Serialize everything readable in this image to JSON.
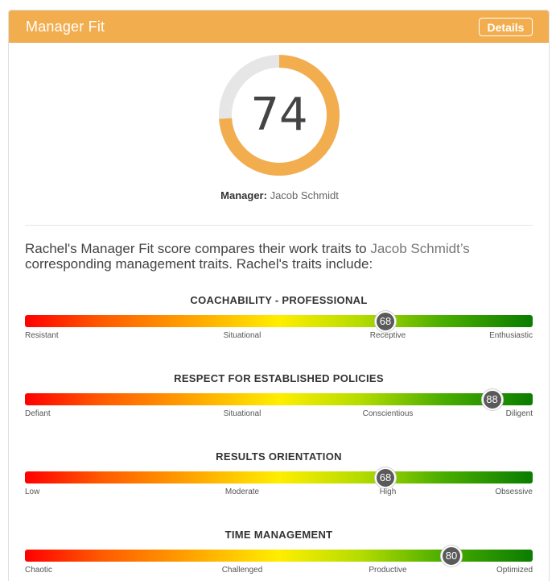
{
  "header": {
    "title": "Manager Fit",
    "details_label": "Details",
    "color": "#f2ad4e"
  },
  "score": {
    "value": "74",
    "percent": 74,
    "ring_color": "#f2ad4e",
    "track_color": "#e6e6e6"
  },
  "manager": {
    "label": "Manager:",
    "name": "Jacob Schmidt"
  },
  "intro": {
    "before": "Rachel's Manager Fit score compares their work traits to ",
    "manager_name": "Jacob Schmidt’s",
    "after": " corresponding management traits. Rachel's traits include:"
  },
  "traits": [
    {
      "title": "COACHABILITY - PROFESSIONAL",
      "value": "68",
      "percent": 71,
      "labels": [
        "Resistant",
        "Situational",
        "Receptive",
        "Enthusiastic"
      ]
    },
    {
      "title": "RESPECT FOR ESTABLISHED POLICIES",
      "value": "88",
      "percent": 92,
      "labels": [
        "Defiant",
        "Situational",
        "Conscientious",
        "Diligent"
      ]
    },
    {
      "title": "RESULTS ORIENTATION",
      "value": "68",
      "percent": 71,
      "labels": [
        "Low",
        "Moderate",
        "High",
        "Obsessive"
      ]
    },
    {
      "title": "TIME MANAGEMENT",
      "value": "80",
      "percent": 84,
      "labels": [
        "Chaotic",
        "Challenged",
        "Productive",
        "Optimized"
      ]
    }
  ]
}
